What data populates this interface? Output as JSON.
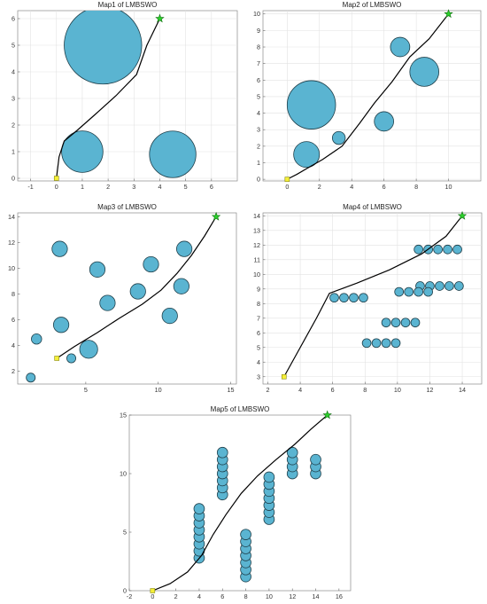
{
  "chart_data": [
    {
      "type": "scatter",
      "title": "Map1 of LMBSWO",
      "xlim": [
        -1.5,
        7
      ],
      "ylim": [
        -0.1,
        6.3
      ],
      "xticks": [
        -1,
        0,
        1,
        2,
        3,
        4,
        5,
        6
      ],
      "yticks": [
        0,
        1,
        2,
        3,
        4,
        5,
        6
      ],
      "grid": true,
      "obstacles": [
        {
          "x": 1.8,
          "y": 5.0,
          "r": 1.5
        },
        {
          "x": 1.0,
          "y": 1.0,
          "r": 0.8
        },
        {
          "x": 4.5,
          "y": 0.9,
          "r": 0.9
        }
      ],
      "path": [
        [
          0,
          0
        ],
        [
          0.1,
          0.8
        ],
        [
          0.3,
          1.4
        ],
        [
          0.8,
          1.8
        ],
        [
          1.5,
          2.4
        ],
        [
          2.3,
          3.1
        ],
        [
          3.1,
          3.9
        ],
        [
          3.5,
          5.0
        ],
        [
          4.0,
          6.0
        ]
      ],
      "start": [
        0,
        0
      ],
      "goal": [
        4,
        6
      ]
    },
    {
      "type": "scatter",
      "title": "Map2 of LMBSWO",
      "xlim": [
        -1.5,
        12
      ],
      "ylim": [
        -0.1,
        10.2
      ],
      "xticks": [
        0,
        2,
        4,
        6,
        8,
        10
      ],
      "yticks": [
        0,
        1,
        2,
        3,
        4,
        5,
        6,
        7,
        8,
        9,
        10
      ],
      "grid": true,
      "obstacles": [
        {
          "x": 1.5,
          "y": 4.5,
          "r": 1.5
        },
        {
          "x": 1.2,
          "y": 1.5,
          "r": 0.8
        },
        {
          "x": 3.2,
          "y": 2.5,
          "r": 0.4
        },
        {
          "x": 6.0,
          "y": 3.5,
          "r": 0.6
        },
        {
          "x": 7.0,
          "y": 8.0,
          "r": 0.6
        },
        {
          "x": 8.5,
          "y": 6.5,
          "r": 0.9
        }
      ],
      "path": [
        [
          0,
          0
        ],
        [
          0.6,
          0.3
        ],
        [
          1.3,
          0.7
        ],
        [
          2.2,
          1.2
        ],
        [
          3.4,
          2.0
        ],
        [
          4.5,
          3.4
        ],
        [
          5.4,
          4.6
        ],
        [
          6.5,
          5.9
        ],
        [
          7.6,
          7.4
        ],
        [
          8.8,
          8.5
        ],
        [
          10,
          10
        ]
      ],
      "start": [
        0,
        0
      ],
      "goal": [
        10,
        10
      ]
    },
    {
      "type": "scatter",
      "title": "Map3 of LMBSWO",
      "xlim": [
        0.3,
        15.4
      ],
      "ylim": [
        1.0,
        14.3
      ],
      "xticks": [
        5,
        10,
        15
      ],
      "yticks": [
        2,
        4,
        6,
        8,
        10,
        12,
        14
      ],
      "grid": false,
      "obstacles": [
        {
          "x": 3.2,
          "y": 11.5,
          "r": 0.6
        },
        {
          "x": 5.8,
          "y": 9.9,
          "r": 0.6
        },
        {
          "x": 9.5,
          "y": 10.3,
          "r": 0.6
        },
        {
          "x": 11.8,
          "y": 11.5,
          "r": 0.6
        },
        {
          "x": 8.6,
          "y": 8.2,
          "r": 0.6
        },
        {
          "x": 11.6,
          "y": 8.6,
          "r": 0.6
        },
        {
          "x": 6.5,
          "y": 7.3,
          "r": 0.6
        },
        {
          "x": 10.8,
          "y": 6.3,
          "r": 0.6
        },
        {
          "x": 3.3,
          "y": 5.6,
          "r": 0.6
        },
        {
          "x": 1.6,
          "y": 4.5,
          "r": 0.4
        },
        {
          "x": 5.2,
          "y": 3.7,
          "r": 0.7
        },
        {
          "x": 4.0,
          "y": 3.0,
          "r": 0.35
        },
        {
          "x": 1.2,
          "y": 1.5,
          "r": 0.35
        }
      ],
      "path": [
        [
          3,
          3
        ],
        [
          4.2,
          3.9
        ],
        [
          5.8,
          5.0
        ],
        [
          7.3,
          6.1
        ],
        [
          8.9,
          7.2
        ],
        [
          10.2,
          8.3
        ],
        [
          11.3,
          9.6
        ],
        [
          12.3,
          11.0
        ],
        [
          13.2,
          12.5
        ],
        [
          14,
          14
        ]
      ],
      "start": [
        3,
        3
      ],
      "goal": [
        14,
        14
      ]
    },
    {
      "type": "scatter",
      "title": "Map4 of LMBSWO",
      "xlim": [
        1.7,
        15.2
      ],
      "ylim": [
        2.5,
        14.2
      ],
      "xticks": [
        2,
        4,
        6,
        8,
        10,
        12,
        14
      ],
      "yticks": [
        3,
        4,
        5,
        6,
        7,
        8,
        9,
        10,
        11,
        12,
        13,
        14
      ],
      "grid": true,
      "obstacle_rows": [
        {
          "y": 11.7,
          "xs": [
            11.3,
            11.9,
            12.5,
            13.1,
            13.7
          ]
        },
        {
          "y": 9.2,
          "xs": [
            11.4,
            12.0,
            12.6,
            13.2,
            13.8
          ]
        },
        {
          "y": 8.8,
          "xs": [
            10.1,
            10.7,
            11.3,
            11.9
          ]
        },
        {
          "y": 8.4,
          "xs": [
            6.1,
            6.7,
            7.3,
            7.9
          ]
        },
        {
          "y": 6.7,
          "xs": [
            9.3,
            9.9,
            10.5,
            11.1
          ]
        },
        {
          "y": 5.3,
          "xs": [
            8.1,
            8.7,
            9.3,
            9.9
          ]
        }
      ],
      "obstacle_r": 0.3,
      "path": [
        [
          3,
          3
        ],
        [
          4,
          5
        ],
        [
          5,
          7
        ],
        [
          5.8,
          8.7
        ],
        [
          7.5,
          9.4
        ],
        [
          9.5,
          10.3
        ],
        [
          11.5,
          11.4
        ],
        [
          13,
          12.6
        ],
        [
          14,
          14
        ]
      ],
      "start": [
        3,
        3
      ],
      "goal": [
        14,
        14
      ]
    },
    {
      "type": "scatter",
      "title": "Map5 of LMBSWO",
      "xlim": [
        -2,
        17
      ],
      "ylim": [
        0,
        15
      ],
      "xticks": [
        -2,
        0,
        2,
        4,
        6,
        8,
        10,
        12,
        14,
        16
      ],
      "yticks": [
        0,
        5,
        10,
        15
      ],
      "grid": false,
      "obstacle_columns": [
        {
          "x": 4,
          "ys": [
            2.8,
            3.4,
            4.0,
            4.6,
            5.2,
            5.8,
            6.4,
            7.0
          ]
        },
        {
          "x": 6,
          "ys": [
            8.2,
            8.8,
            9.4,
            10.0,
            10.6,
            11.2,
            11.8
          ]
        },
        {
          "x": 8,
          "ys": [
            1.2,
            1.8,
            2.4,
            3.0,
            3.6,
            4.2,
            4.8
          ]
        },
        {
          "x": 10,
          "ys": [
            6.1,
            6.7,
            7.3,
            7.9,
            8.5,
            9.1,
            9.7
          ]
        },
        {
          "x": 12,
          "ys": [
            10.0,
            10.6,
            11.2,
            11.8
          ]
        },
        {
          "x": 14,
          "ys": [
            10.0,
            10.6,
            11.2
          ]
        }
      ],
      "obstacle_r": 0.45,
      "path": [
        [
          0,
          0
        ],
        [
          1.5,
          0.6
        ],
        [
          3,
          1.6
        ],
        [
          4.2,
          3.0
        ],
        [
          5.2,
          4.8
        ],
        [
          6.3,
          6.5
        ],
        [
          7.6,
          8.3
        ],
        [
          9,
          9.8
        ],
        [
          10.6,
          11.2
        ],
        [
          12.2,
          12.5
        ],
        [
          13.6,
          13.8
        ],
        [
          15,
          15
        ]
      ],
      "start": [
        0,
        0
      ],
      "goal": [
        15,
        15
      ]
    }
  ]
}
